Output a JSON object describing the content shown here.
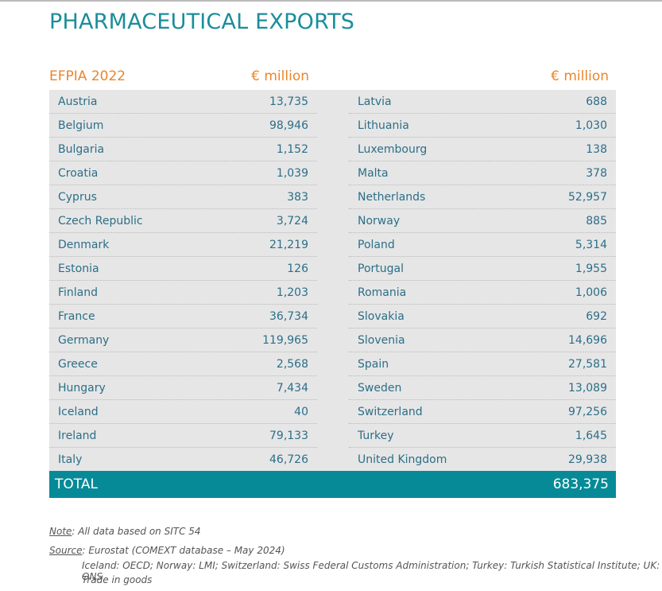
{
  "header": {
    "title": "PHARMACEUTICAL EXPORTS"
  },
  "table": {
    "header": {
      "label": "EFPIA 2022",
      "unit_left": "€ million",
      "unit_right": "€ million"
    },
    "left_rows": [
      [
        "Austria",
        "13,735"
      ],
      [
        "Belgium",
        "98,946"
      ],
      [
        "Bulgaria",
        "1,152"
      ],
      [
        "Croatia",
        "1,039"
      ],
      [
        "Cyprus",
        "383"
      ],
      [
        "Czech Republic",
        "3,724"
      ],
      [
        "Denmark",
        "21,219"
      ],
      [
        "Estonia",
        "126"
      ],
      [
        "Finland",
        "1,203"
      ],
      [
        "France",
        "36,734"
      ],
      [
        "Germany",
        "119,965"
      ],
      [
        "Greece",
        "2,568"
      ],
      [
        "Hungary",
        "7,434"
      ],
      [
        "Iceland",
        "40"
      ],
      [
        "Ireland",
        "79,133"
      ],
      [
        "Italy",
        "46,726"
      ]
    ],
    "right_rows": [
      [
        "Latvia",
        "688"
      ],
      [
        "Lithuania",
        "1,030"
      ],
      [
        "Luxembourg",
        "138"
      ],
      [
        "Malta",
        "378"
      ],
      [
        "Netherlands",
        "52,957"
      ],
      [
        "Norway",
        "885"
      ],
      [
        "Poland",
        "5,314"
      ],
      [
        "Portugal",
        "1,955"
      ],
      [
        "Romania",
        "1,006"
      ],
      [
        "Slovakia",
        "692"
      ],
      [
        "Slovenia",
        "14,696"
      ],
      [
        "Spain",
        "27,581"
      ],
      [
        "Sweden",
        "13,089"
      ],
      [
        "Switzerland",
        "97,256"
      ],
      [
        "Turkey",
        "1,645"
      ],
      [
        "United Kingdom",
        "29,938"
      ]
    ],
    "total": {
      "label": "TOTAL",
      "value": "683,375"
    }
  },
  "notes": {
    "note_label": "Note",
    "note_text": ": All data based on SITC 54",
    "source_label": "Source",
    "source_text": ": Eurostat (COMEXT database – May 2024)",
    "source_detail_1": "Iceland: OECD; Norway: LMI; Switzerland: Swiss Federal Customs Administration; Turkey: Turkish Statistical Institute; UK: ONS",
    "source_detail_2": "Trade in goods"
  }
}
